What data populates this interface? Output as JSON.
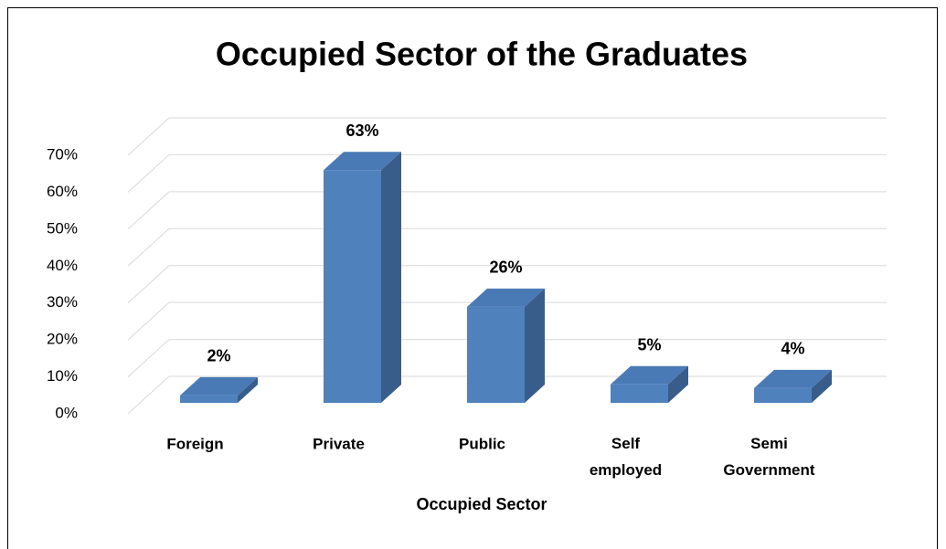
{
  "chart_data": {
    "type": "bar3d",
    "title": "Occupied Sector of the Graduates",
    "x_label": "Occupied Sector",
    "categories": [
      "Foreign",
      "Private",
      "Public",
      "Self employed",
      "Semi Government"
    ],
    "values": [
      2,
      63,
      26,
      5,
      4
    ],
    "value_labels": [
      "2%",
      "63%",
      "26%",
      "5%",
      "4%"
    ],
    "color": "#4f81bd",
    "ylim": [
      0,
      70
    ],
    "yticks": [
      {
        "value": 0,
        "label": "0%"
      },
      {
        "value": 10,
        "label": "10%"
      },
      {
        "value": 20,
        "label": "20%"
      },
      {
        "value": 30,
        "label": "30%"
      },
      {
        "value": 40,
        "label": "40%"
      },
      {
        "value": 50,
        "label": "50%"
      },
      {
        "value": 60,
        "label": "60%"
      },
      {
        "value": 70,
        "label": "70%"
      }
    ],
    "grid": true
  }
}
